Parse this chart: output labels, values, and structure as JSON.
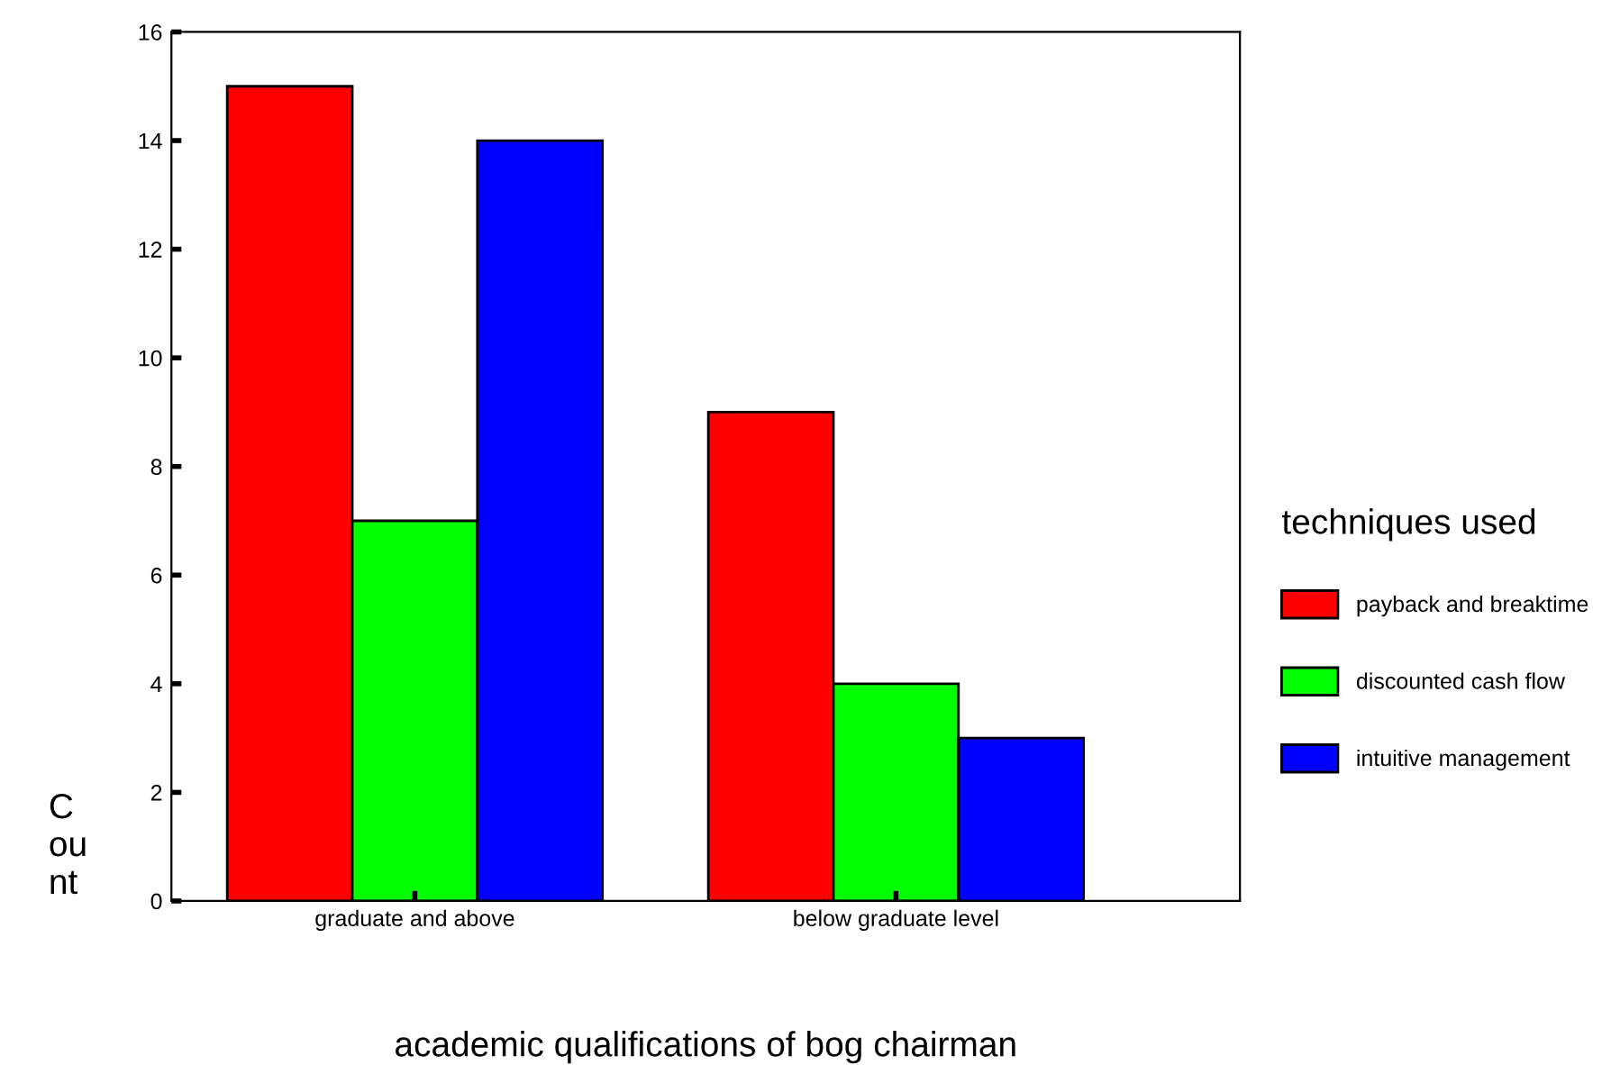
{
  "chart_data": {
    "type": "bar",
    "xlabel": "academic qualifications of bog chairman",
    "ylabel": "C\nou\nnt",
    "legend_title": "techniques used",
    "categories": [
      "graduate and above",
      "below graduate level"
    ],
    "series": [
      {
        "name": "payback and breaktime",
        "color": "#ff0000",
        "values": [
          15,
          9
        ]
      },
      {
        "name": "discounted cash flow",
        "color": "#00ff00",
        "values": [
          7,
          4
        ]
      },
      {
        "name": "intuitive management",
        "color": "#0000ff",
        "values": [
          14,
          3
        ]
      }
    ],
    "ylim": [
      0,
      16
    ],
    "yticks": [
      0,
      2,
      4,
      6,
      8,
      10,
      12,
      14,
      16
    ],
    "grid": false,
    "legend": "right"
  }
}
